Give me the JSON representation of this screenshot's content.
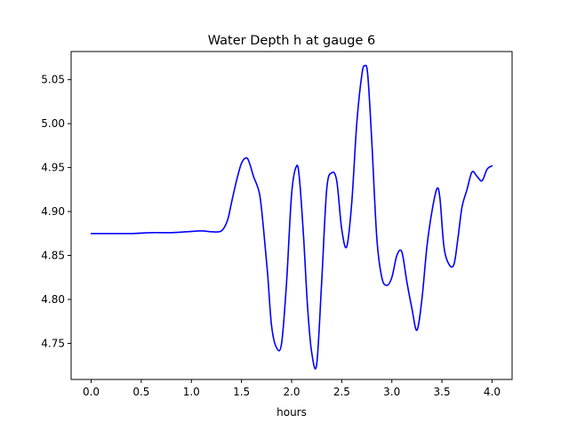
{
  "chart_data": {
    "type": "line",
    "title": "Water Depth h at gauge 6",
    "xlabel": "hours",
    "ylabel": "",
    "xlim": [
      -0.2,
      4.2
    ],
    "ylim": [
      4.709,
      5.082
    ],
    "xticks": [
      0.0,
      0.5,
      1.0,
      1.5,
      2.0,
      2.5,
      3.0,
      3.5,
      4.0
    ],
    "xtick_labels": [
      "0.0",
      "0.5",
      "1.0",
      "1.5",
      "2.0",
      "2.5",
      "3.0",
      "3.5",
      "4.0"
    ],
    "yticks": [
      4.75,
      4.8,
      4.85,
      4.9,
      4.95,
      5.0,
      5.05
    ],
    "ytick_labels": [
      "4.75",
      "4.80",
      "4.85",
      "4.90",
      "4.95",
      "5.00",
      "5.05"
    ],
    "grid": false,
    "series": [
      {
        "color": "#0000ff",
        "x": [
          0.0,
          0.2,
          0.4,
          0.6,
          0.8,
          0.95,
          1.1,
          1.2,
          1.3,
          1.36,
          1.4,
          1.45,
          1.5,
          1.55,
          1.58,
          1.62,
          1.68,
          1.72,
          1.76,
          1.8,
          1.85,
          1.9,
          1.95,
          2.0,
          2.05,
          2.08,
          2.12,
          2.16,
          2.2,
          2.25,
          2.3,
          2.35,
          2.4,
          2.45,
          2.5,
          2.55,
          2.6,
          2.65,
          2.7,
          2.73,
          2.76,
          2.8,
          2.85,
          2.9,
          2.95,
          3.0,
          3.05,
          3.1,
          3.15,
          3.2,
          3.25,
          3.3,
          3.35,
          3.4,
          3.45,
          3.48,
          3.52,
          3.57,
          3.62,
          3.66,
          3.7,
          3.75,
          3.8,
          3.85,
          3.9,
          3.95,
          4.0
        ],
        "y": [
          4.875,
          4.875,
          4.875,
          4.876,
          4.876,
          4.877,
          4.878,
          4.877,
          4.878,
          4.89,
          4.91,
          4.935,
          4.955,
          4.961,
          4.955,
          4.94,
          4.92,
          4.88,
          4.83,
          4.77,
          4.745,
          4.75,
          4.82,
          4.92,
          4.952,
          4.935,
          4.87,
          4.79,
          4.74,
          4.726,
          4.82,
          4.925,
          4.944,
          4.935,
          4.88,
          4.86,
          4.91,
          5.0,
          5.055,
          5.066,
          5.055,
          4.98,
          4.87,
          4.825,
          4.816,
          4.825,
          4.85,
          4.854,
          4.82,
          4.79,
          4.765,
          4.8,
          4.86,
          4.9,
          4.926,
          4.915,
          4.86,
          4.84,
          4.84,
          4.87,
          4.905,
          4.925,
          4.945,
          4.94,
          4.935,
          4.948,
          4.952
        ]
      }
    ]
  }
}
